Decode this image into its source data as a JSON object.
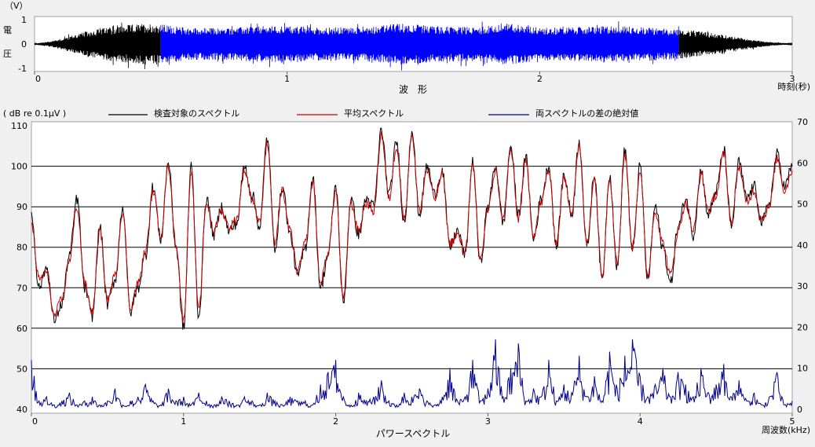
{
  "chart_data": [
    {
      "type": "line",
      "title": "波　形",
      "ylabel_unit": "（V）",
      "ylabel_chars": [
        "電",
        "圧"
      ],
      "xlabel": "時刻(秒)",
      "xlim": [
        0,
        3
      ],
      "ylim": [
        -1,
        1
      ],
      "x_ticks": [
        "0",
        "1",
        "2",
        "3"
      ],
      "y_ticks": [
        "1",
        "0",
        "-1"
      ],
      "colors": {
        "outer": "#000000",
        "inner": "#0000ff"
      },
      "highlight_range": [
        0.5,
        2.55
      ],
      "envelope": {
        "t": [
          0,
          0.05,
          0.1,
          0.15,
          0.2,
          0.25,
          0.3,
          0.35,
          0.4,
          0.45,
          0.5,
          0.6,
          0.75,
          0.9,
          1.0,
          1.15,
          1.3,
          1.45,
          1.6,
          1.75,
          1.9,
          2.0,
          2.15,
          2.3,
          2.45,
          2.55,
          2.6,
          2.7,
          2.8,
          2.9,
          3.0
        ],
        "amp": [
          0.02,
          0.08,
          0.18,
          0.32,
          0.45,
          0.55,
          0.62,
          0.68,
          0.72,
          0.75,
          0.72,
          0.6,
          0.58,
          0.65,
          0.66,
          0.6,
          0.62,
          0.75,
          0.65,
          0.62,
          0.75,
          0.6,
          0.62,
          0.66,
          0.6,
          0.55,
          0.5,
          0.38,
          0.22,
          0.08,
          0.02
        ]
      }
    },
    {
      "type": "line",
      "title": "パワースペクトル",
      "xlabel": "周波数(kHz)",
      "ylabel_left": "( dB re 0.1μV )",
      "xlim": [
        0,
        5
      ],
      "ylim_left": [
        39,
        111
      ],
      "ylim_right": [
        -1,
        70
      ],
      "x_ticks": [
        "0",
        "1",
        "2",
        "3",
        "4",
        "5"
      ],
      "y_ticks_left": [
        "110",
        "100",
        "90",
        "80",
        "70",
        "60",
        "50",
        "40"
      ],
      "y_ticks_right": [
        "70",
        "60",
        "50",
        "40",
        "30",
        "20",
        "10",
        "0"
      ],
      "grid": true,
      "legend_position": "top",
      "series": [
        {
          "name": "検査対象のスペクトル",
          "color": "#000000",
          "axis": "left"
        },
        {
          "name": "平均スペクトル",
          "color": "#cc0000",
          "axis": "left"
        },
        {
          "name": "両スペクトルの差の絶対値",
          "color": "#00008b",
          "axis": "right"
        }
      ],
      "x": [
        0,
        0.05,
        0.1,
        0.15,
        0.2,
        0.25,
        0.3,
        0.35,
        0.4,
        0.45,
        0.5,
        0.55,
        0.6,
        0.65,
        0.7,
        0.75,
        0.8,
        0.85,
        0.9,
        0.95,
        1.0,
        1.05,
        1.1,
        1.15,
        1.2,
        1.25,
        1.3,
        1.35,
        1.4,
        1.45,
        1.5,
        1.55,
        1.6,
        1.65,
        1.7,
        1.75,
        1.8,
        1.85,
        1.9,
        1.95,
        2.0,
        2.05,
        2.1,
        2.15,
        2.2,
        2.25,
        2.3,
        2.35,
        2.4,
        2.45,
        2.5,
        2.55,
        2.6,
        2.65,
        2.7,
        2.75,
        2.8,
        2.85,
        2.9,
        2.95,
        3.0,
        3.05,
        3.1,
        3.15,
        3.2,
        3.25,
        3.3,
        3.35,
        3.4,
        3.45,
        3.5,
        3.55,
        3.6,
        3.65,
        3.7,
        3.75,
        3.8,
        3.85,
        3.9,
        3.95,
        4.0,
        4.05,
        4.1,
        4.15,
        4.2,
        4.25,
        4.3,
        4.35,
        4.4,
        4.45,
        4.5,
        4.55,
        4.6,
        4.65,
        4.7,
        4.75,
        4.8,
        4.85,
        4.9,
        4.95,
        5.0
      ],
      "spectrum": [
        88,
        70,
        75,
        62,
        66,
        78,
        92,
        70,
        63,
        85,
        66,
        72,
        90,
        64,
        70,
        78,
        95,
        82,
        101,
        80,
        60,
        100,
        63,
        92,
        83,
        90,
        84,
        86,
        100,
        93,
        85,
        107,
        80,
        95,
        83,
        73,
        80,
        97,
        70,
        78,
        95,
        66,
        92,
        83,
        92,
        90,
        109,
        93,
        106,
        86,
        109,
        88,
        100,
        93,
        99,
        80,
        84,
        78,
        101,
        76,
        90,
        100,
        86,
        105,
        88,
        102,
        82,
        92,
        100,
        80,
        98,
        88,
        106,
        80,
        98,
        72,
        98,
        75,
        104,
        79,
        100,
        72,
        90,
        80,
        71,
        85,
        92,
        83,
        99,
        88,
        94,
        104,
        85,
        101,
        92,
        95,
        86,
        91,
        103,
        95,
        100
      ],
      "average": [
        86,
        72,
        74,
        63,
        67,
        77,
        90,
        71,
        64,
        84,
        67,
        73,
        89,
        65,
        71,
        79,
        94,
        83,
        100,
        81,
        62,
        99,
        64,
        91,
        84,
        89,
        85,
        87,
        99,
        92,
        86,
        106,
        81,
        94,
        84,
        74,
        81,
        96,
        71,
        79,
        94,
        67,
        91,
        84,
        91,
        89,
        108,
        92,
        105,
        87,
        108,
        89,
        99,
        92,
        98,
        81,
        83,
        79,
        100,
        77,
        89,
        99,
        87,
        104,
        87,
        101,
        83,
        91,
        99,
        81,
        97,
        89,
        105,
        81,
        97,
        73,
        97,
        76,
        103,
        80,
        99,
        73,
        89,
        81,
        73,
        84,
        91,
        84,
        98,
        89,
        93,
        103,
        86,
        100,
        91,
        94,
        87,
        90,
        102,
        94,
        99
      ],
      "difference": [
        12,
        2,
        3,
        1,
        2,
        4,
        1,
        2,
        3,
        1,
        2,
        5,
        1,
        2,
        3,
        6,
        2,
        1,
        5,
        2,
        3,
        1,
        4,
        2,
        1,
        3,
        2,
        1,
        3,
        2,
        1,
        4,
        2,
        1,
        3,
        2,
        2,
        1,
        6,
        9,
        12,
        3,
        1,
        4,
        2,
        3,
        7,
        2,
        1,
        4,
        3,
        5,
        2,
        1,
        3,
        10,
        2,
        3,
        12,
        2,
        5,
        17,
        3,
        10,
        16,
        2,
        5,
        3,
        12,
        2,
        6,
        4,
        13,
        3,
        8,
        2,
        14,
        5,
        13,
        17,
        8,
        3,
        6,
        10,
        3,
        9,
        6,
        3,
        10,
        4,
        6,
        11,
        3,
        7,
        2,
        4,
        1,
        3,
        9,
        1,
        2
      ]
    }
  ]
}
